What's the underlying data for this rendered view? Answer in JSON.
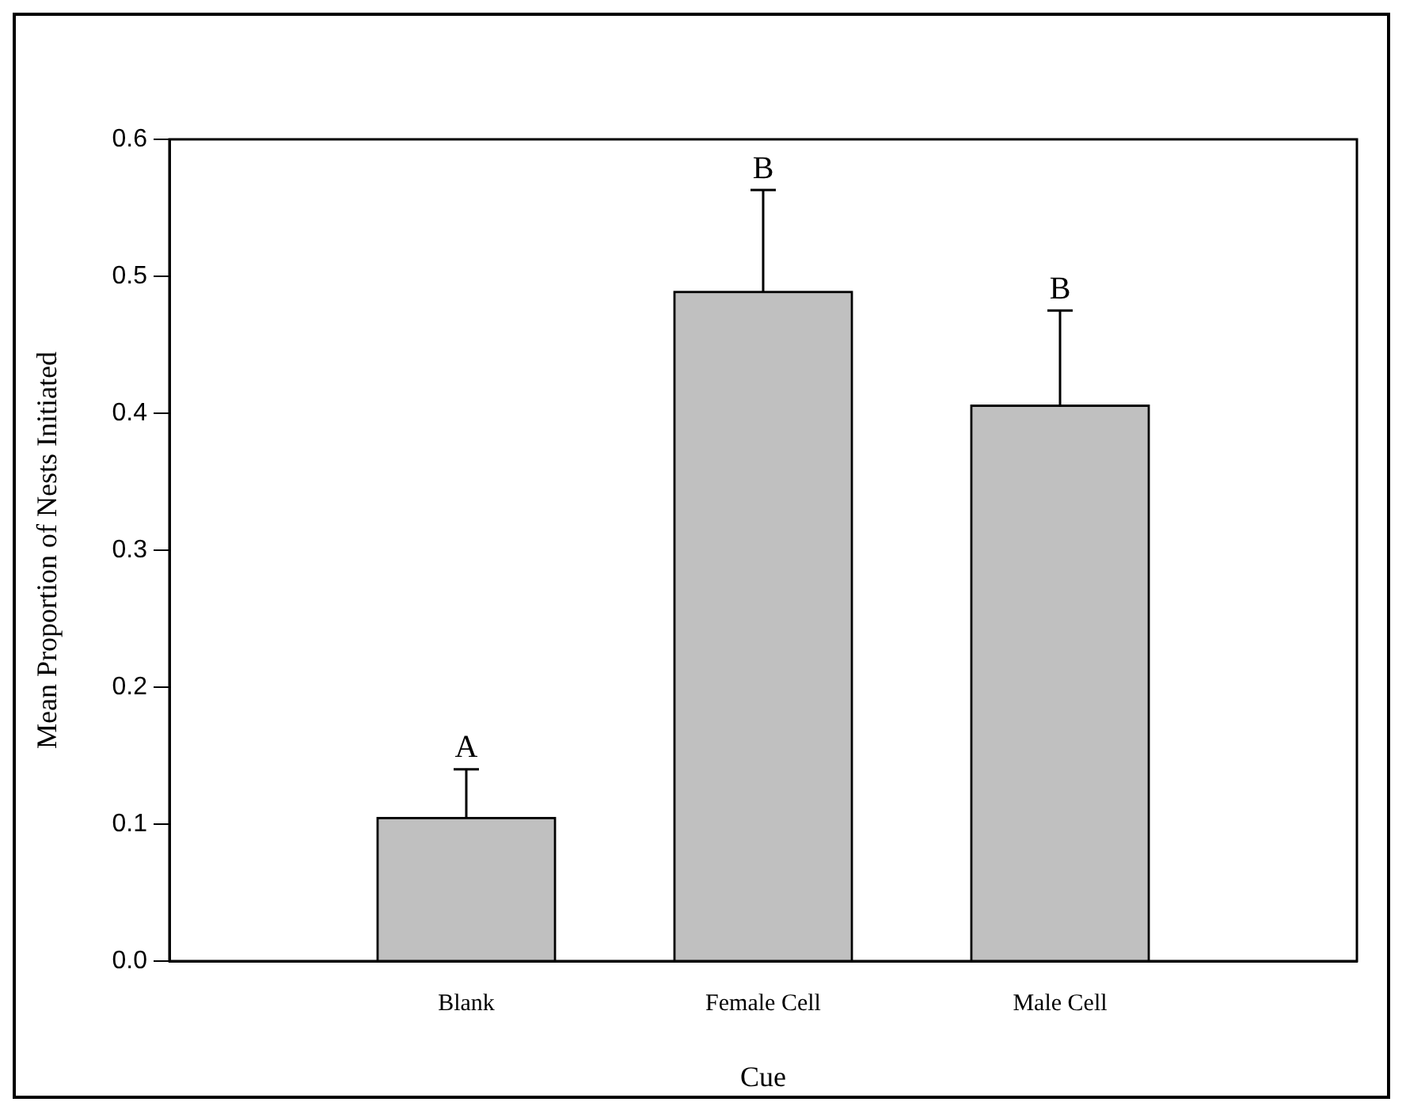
{
  "chart_data": {
    "type": "bar",
    "xlabel": "Cue",
    "ylabel": "Mean Proportion of Nests Initiated",
    "categories": [
      "Blank",
      "Female Cell",
      "Male Cell"
    ],
    "values": [
      0.105,
      0.489,
      0.406
    ],
    "color": "#c0c0c0",
    "errors": [
      [
        0.105,
        0.14
      ],
      [
        0.489,
        0.563
      ],
      [
        0.406,
        0.475
      ]
    ],
    "ylim": [
      0,
      0.6
    ],
    "yticks": [
      {
        "value": 0,
        "label": "0.0"
      },
      0.1,
      0.2,
      0.3,
      0.4,
      0.5,
      0.6
    ],
    "grid": false,
    "legend": false,
    "annotations": [
      "A",
      "B",
      "B"
    ]
  }
}
